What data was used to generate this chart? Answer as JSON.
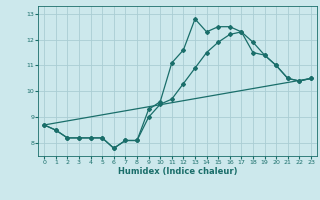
{
  "xlabel": "Humidex (Indice chaleur)",
  "bg_color": "#cce8ec",
  "grid_color": "#aacdd4",
  "line_color": "#1a6e6a",
  "xlim": [
    -0.5,
    23.5
  ],
  "ylim": [
    7.5,
    13.3
  ],
  "xticks": [
    0,
    1,
    2,
    3,
    4,
    5,
    6,
    7,
    8,
    9,
    10,
    11,
    12,
    13,
    14,
    15,
    16,
    17,
    18,
    19,
    20,
    21,
    22,
    23
  ],
  "yticks": [
    8,
    9,
    10,
    11,
    12,
    13
  ],
  "line1_x": [
    0,
    1,
    2,
    3,
    4,
    5,
    6,
    7,
    8,
    9,
    10,
    11,
    12,
    13,
    14,
    15,
    16,
    17,
    18,
    19,
    20,
    21,
    22,
    23
  ],
  "line1_y": [
    8.7,
    8.5,
    8.2,
    8.2,
    8.2,
    8.2,
    7.8,
    8.1,
    8.1,
    9.3,
    9.6,
    11.1,
    11.6,
    12.8,
    12.3,
    12.5,
    12.5,
    12.3,
    11.9,
    11.4,
    11.0,
    10.5,
    10.4,
    10.5
  ],
  "line2_x": [
    0,
    1,
    2,
    3,
    4,
    5,
    6,
    7,
    8,
    9,
    10,
    11,
    12,
    13,
    14,
    15,
    16,
    17,
    18,
    19,
    20,
    21,
    22,
    23
  ],
  "line2_y": [
    8.7,
    8.5,
    8.2,
    8.2,
    8.2,
    8.2,
    7.8,
    8.1,
    8.1,
    9.0,
    9.5,
    9.7,
    10.3,
    10.9,
    11.5,
    11.9,
    12.2,
    12.3,
    11.5,
    11.4,
    11.0,
    10.5,
    10.4,
    10.5
  ],
  "line3_x": [
    0,
    23
  ],
  "line3_y": [
    8.7,
    10.5
  ]
}
